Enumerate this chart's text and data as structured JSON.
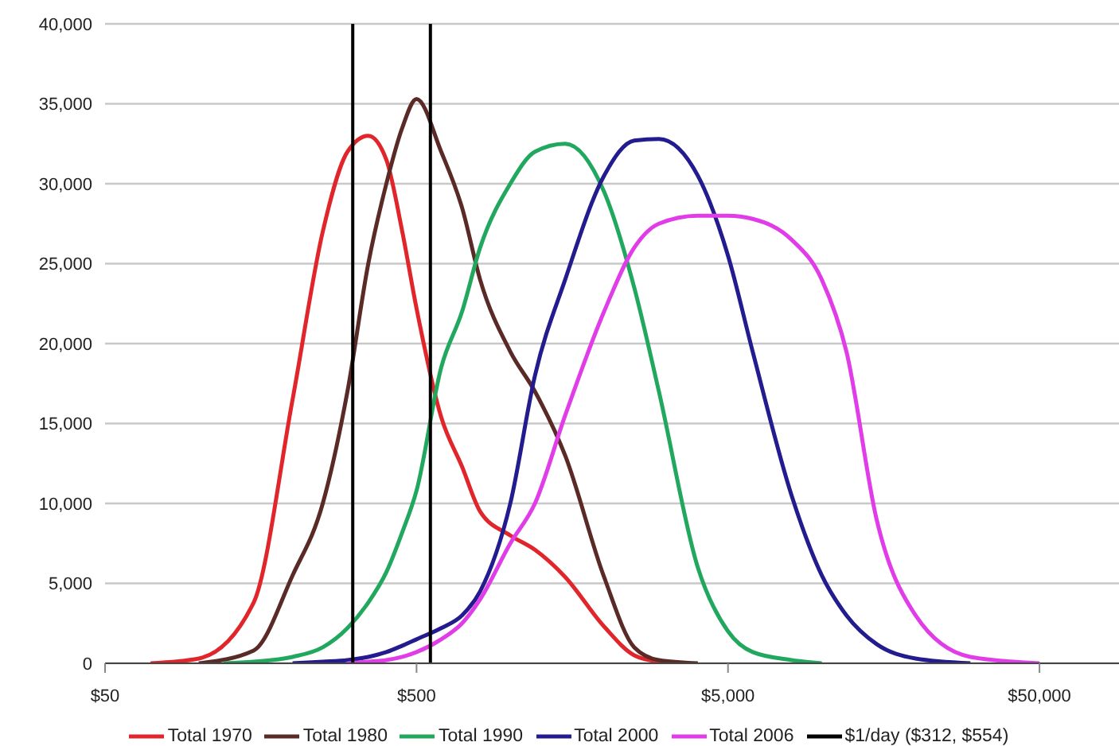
{
  "chart_data": {
    "type": "line",
    "log": "x",
    "grid": "y",
    "legend": "bottom",
    "marker": "none",
    "line_style": "solid",
    "xlim": [
      50,
      90000
    ],
    "xticks": [
      {
        "value": 50,
        "label": "$50"
      },
      {
        "value": 500,
        "label": "$500"
      },
      {
        "value": 5000,
        "label": "$5,000"
      },
      {
        "value": 50000,
        "label": "$50,000"
      }
    ],
    "ylim": [
      0,
      40000
    ],
    "yticks": [
      0,
      {
        "value": 5000,
        "label": "5,000"
      },
      {
        "value": 10000,
        "label": "10,000"
      },
      {
        "value": 15000,
        "label": "15,000"
      },
      {
        "value": 20000,
        "label": "20,000"
      },
      {
        "value": 25000,
        "label": "25,000"
      },
      {
        "value": 30000,
        "label": "30,000"
      },
      {
        "value": 35000,
        "label": "35,000"
      },
      {
        "value": 40000,
        "label": "40,000"
      }
    ],
    "series": [
      {
        "name": "Total 1970",
        "color": "#e0262b",
        "x": [
          70,
          100,
          150,
          200,
          250,
          300,
          350,
          400,
          450,
          500,
          600,
          700,
          800,
          1000,
          1200,
          1500,
          2000,
          2500,
          3000,
          3500
        ],
        "values": [
          0,
          300,
          3800,
          16500,
          27000,
          32000,
          33000,
          31500,
          27000,
          22200,
          15400,
          12300,
          9500,
          8000,
          7100,
          5400,
          2300,
          500,
          100,
          0
        ]
      },
      {
        "name": "Total 1980",
        "color": "#5a2a27",
        "x": [
          100,
          150,
          200,
          250,
          300,
          350,
          400,
          450,
          500,
          600,
          700,
          800,
          1000,
          1200,
          1500,
          2000,
          2500,
          3000,
          4000
        ],
        "values": [
          0,
          800,
          5500,
          10000,
          17000,
          25000,
          30000,
          33500,
          35300,
          32000,
          28500,
          24000,
          19500,
          17000,
          13000,
          5400,
          1000,
          200,
          0
        ]
      },
      {
        "name": "Total 1990",
        "color": "#21a85e",
        "x": [
          120,
          150,
          200,
          250,
          300,
          350,
          400,
          450,
          500,
          600,
          700,
          800,
          1000,
          1200,
          1500,
          2000,
          2500,
          3000,
          4000,
          5000,
          6000,
          8000,
          10000
        ],
        "values": [
          0,
          100,
          400,
          1000,
          2200,
          3800,
          5700,
          8200,
          10800,
          18500,
          22000,
          26000,
          30000,
          32000,
          32500,
          29500,
          23500,
          17000,
          6000,
          2000,
          700,
          200,
          0
        ]
      },
      {
        "name": "Total 2000",
        "color": "#231c8e",
        "x": [
          200,
          250,
          300,
          350,
          400,
          450,
          500,
          600,
          700,
          800,
          1000,
          1200,
          1500,
          2000,
          2500,
          3000,
          4000,
          5000,
          6000,
          8000,
          10000,
          12000,
          15000,
          20000,
          30000
        ],
        "values": [
          0,
          100,
          200,
          400,
          700,
          1100,
          1500,
          2200,
          3000,
          4500,
          10000,
          18000,
          24000,
          30500,
          32700,
          32800,
          30500,
          25500,
          19500,
          10500,
          5500,
          3000,
          1200,
          300,
          0
        ]
      },
      {
        "name": "Total 2006",
        "color": "#e03ce8",
        "x": [
          300,
          350,
          400,
          450,
          500,
          600,
          700,
          800,
          1000,
          1200,
          1500,
          2000,
          2500,
          3000,
          4000,
          5000,
          6000,
          8000,
          10000,
          12000,
          15000,
          20000,
          30000,
          50000
        ],
        "values": [
          0,
          100,
          200,
          400,
          700,
          1500,
          2500,
          4000,
          7500,
          10000,
          15500,
          22000,
          26000,
          27500,
          28000,
          28000,
          27800,
          26500,
          24000,
          19500,
          9000,
          3000,
          400,
          0
        ]
      }
    ],
    "ref_lines": [
      {
        "axis": "x",
        "value": 312,
        "label": "$1/day ($312, $554)",
        "color": "#000000"
      },
      {
        "axis": "x",
        "value": 554,
        "color": "#000000"
      }
    ]
  }
}
